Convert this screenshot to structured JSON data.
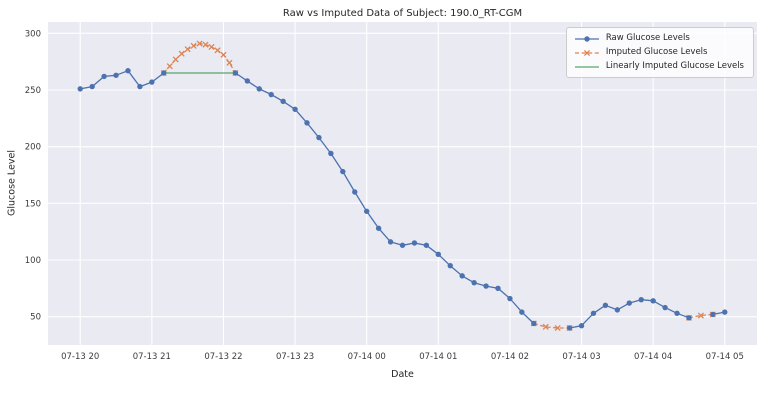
{
  "chart_data": {
    "type": "line",
    "title": "Raw vs Imputed Data of Subject: 190.0_RT-CGM",
    "xlabel": "Date",
    "ylabel": "Glucose Level",
    "x_tick_labels": [
      "07-13 20",
      "07-13 21",
      "07-13 22",
      "07-13 23",
      "07-14 00",
      "07-14 01",
      "07-14 02",
      "07-14 03",
      "07-14 04",
      "07-14 05"
    ],
    "y_ticks": [
      50,
      100,
      150,
      200,
      250,
      300
    ],
    "ylim": [
      25,
      310
    ],
    "grid": true,
    "legend_position": "upper right",
    "plot_bg": "#eaeaf2",
    "grid_color": "#ffffff",
    "series": [
      {
        "name": "Raw Glucose Levels",
        "color": "#4c72b0",
        "line": "solid",
        "marker": "circle",
        "points": [
          [
            "07-13 20:00",
            251
          ],
          [
            "07-13 20:10",
            253
          ],
          [
            "07-13 20:20",
            262
          ],
          [
            "07-13 20:30",
            263
          ],
          [
            "07-13 20:40",
            267
          ],
          [
            "07-13 20:50",
            253
          ],
          [
            "07-13 21:00",
            257
          ],
          [
            "07-13 21:10",
            265
          ],
          [
            "07-13 21:20",
            null
          ],
          [
            "07-13 21:30",
            null
          ],
          [
            "07-13 21:40",
            null
          ],
          [
            "07-13 21:50",
            null
          ],
          [
            "07-13 22:00",
            null
          ],
          [
            "07-13 22:10",
            265
          ],
          [
            "07-13 22:20",
            258
          ],
          [
            "07-13 22:30",
            251
          ],
          [
            "07-13 22:40",
            246
          ],
          [
            "07-13 22:50",
            240
          ],
          [
            "07-13 23:00",
            233
          ],
          [
            "07-13 23:10",
            221
          ],
          [
            "07-13 23:20",
            208
          ],
          [
            "07-13 23:30",
            194
          ],
          [
            "07-13 23:40",
            178
          ],
          [
            "07-13 23:50",
            160
          ],
          [
            "07-14 00:00",
            143
          ],
          [
            "07-14 00:10",
            128
          ],
          [
            "07-14 00:20",
            116
          ],
          [
            "07-14 00:30",
            113
          ],
          [
            "07-14 00:40",
            115
          ],
          [
            "07-14 00:50",
            113
          ],
          [
            "07-14 01:00",
            105
          ],
          [
            "07-14 01:10",
            95
          ],
          [
            "07-14 01:20",
            86
          ],
          [
            "07-14 01:30",
            80
          ],
          [
            "07-14 01:40",
            77
          ],
          [
            "07-14 01:50",
            75
          ],
          [
            "07-14 02:00",
            66
          ],
          [
            "07-14 02:10",
            54
          ],
          [
            "07-14 02:20",
            44
          ],
          [
            "07-14 02:30",
            null
          ],
          [
            "07-14 02:40",
            null
          ],
          [
            "07-14 02:50",
            40
          ],
          [
            "07-14 03:00",
            42
          ],
          [
            "07-14 03:10",
            53
          ],
          [
            "07-14 03:20",
            60
          ],
          [
            "07-14 03:30",
            56
          ],
          [
            "07-14 03:40",
            62
          ],
          [
            "07-14 03:50",
            65
          ],
          [
            "07-14 04:00",
            64
          ],
          [
            "07-14 04:10",
            58
          ],
          [
            "07-14 04:20",
            53
          ],
          [
            "07-14 04:30",
            49
          ],
          [
            "07-14 04:40",
            null
          ],
          [
            "07-14 04:50",
            52
          ],
          [
            "07-14 05:00",
            54
          ]
        ]
      },
      {
        "name": "Imputed Glucose Levels",
        "color": "#dd8452",
        "line": "dashed",
        "marker": "x",
        "segments": [
          [
            [
              "07-13 21:10",
              265
            ],
            [
              "07-13 21:15",
              271
            ],
            [
              "07-13 21:20",
              277
            ],
            [
              "07-13 21:25",
              282
            ],
            [
              "07-13 21:30",
              286
            ],
            [
              "07-13 21:35",
              289
            ],
            [
              "07-13 21:40",
              291
            ],
            [
              "07-13 21:45",
              290
            ],
            [
              "07-13 21:50",
              288
            ],
            [
              "07-13 21:55",
              285
            ],
            [
              "07-13 22:00",
              281
            ],
            [
              "07-13 22:05",
              274
            ],
            [
              "07-13 22:10",
              265
            ]
          ],
          [
            [
              "07-14 02:20",
              44
            ],
            [
              "07-14 02:30",
              41
            ],
            [
              "07-14 02:40",
              40
            ],
            [
              "07-14 02:50",
              40
            ]
          ],
          [
            [
              "07-14 04:30",
              49
            ],
            [
              "07-14 04:40",
              51
            ],
            [
              "07-14 04:50",
              52
            ]
          ]
        ]
      },
      {
        "name": "Linearly Imputed Glucose Levels",
        "color": "#55a868",
        "line": "solid",
        "marker": "none",
        "segments": [
          [
            [
              "07-13 21:10",
              265
            ],
            [
              "07-13 22:10",
              265
            ]
          ]
        ]
      }
    ]
  }
}
